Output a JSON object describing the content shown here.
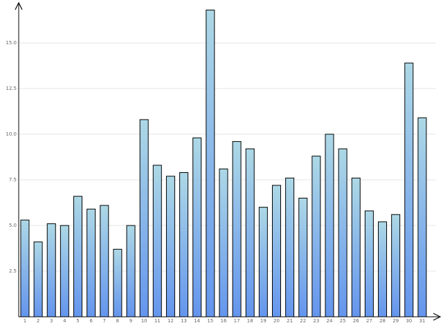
{
  "chart_data": {
    "type": "bar",
    "categories": [
      "1",
      "2",
      "3",
      "4",
      "5",
      "6",
      "7",
      "8",
      "9",
      "10",
      "11",
      "12",
      "13",
      "14",
      "15",
      "16",
      "17",
      "18",
      "19",
      "20",
      "21",
      "22",
      "23",
      "24",
      "25",
      "26",
      "27",
      "28",
      "29",
      "30",
      "31"
    ],
    "values": [
      5.3,
      4.1,
      5.1,
      5.0,
      6.6,
      5.9,
      6.1,
      3.7,
      5.0,
      10.8,
      8.3,
      7.7,
      7.9,
      9.8,
      16.8,
      8.1,
      9.6,
      9.2,
      6.0,
      7.2,
      7.6,
      6.5,
      8.8,
      10.0,
      9.2,
      7.6,
      5.8,
      5.2,
      5.6,
      13.9,
      10.9
    ],
    "colors": [
      "#add8e6",
      "#6495ed"
    ],
    "ylim": [
      0,
      17.2
    ],
    "yticks": [
      {
        "value": 2.5,
        "label": "2.5"
      },
      {
        "value": 5,
        "label": "5.0"
      },
      {
        "value": 7.5,
        "label": "7.5"
      },
      {
        "value": 10,
        "label": "10.0"
      },
      {
        "value": 12.5,
        "label": "12.5"
      },
      {
        "value": 15,
        "label": "15.0"
      }
    ],
    "grid": true
  }
}
